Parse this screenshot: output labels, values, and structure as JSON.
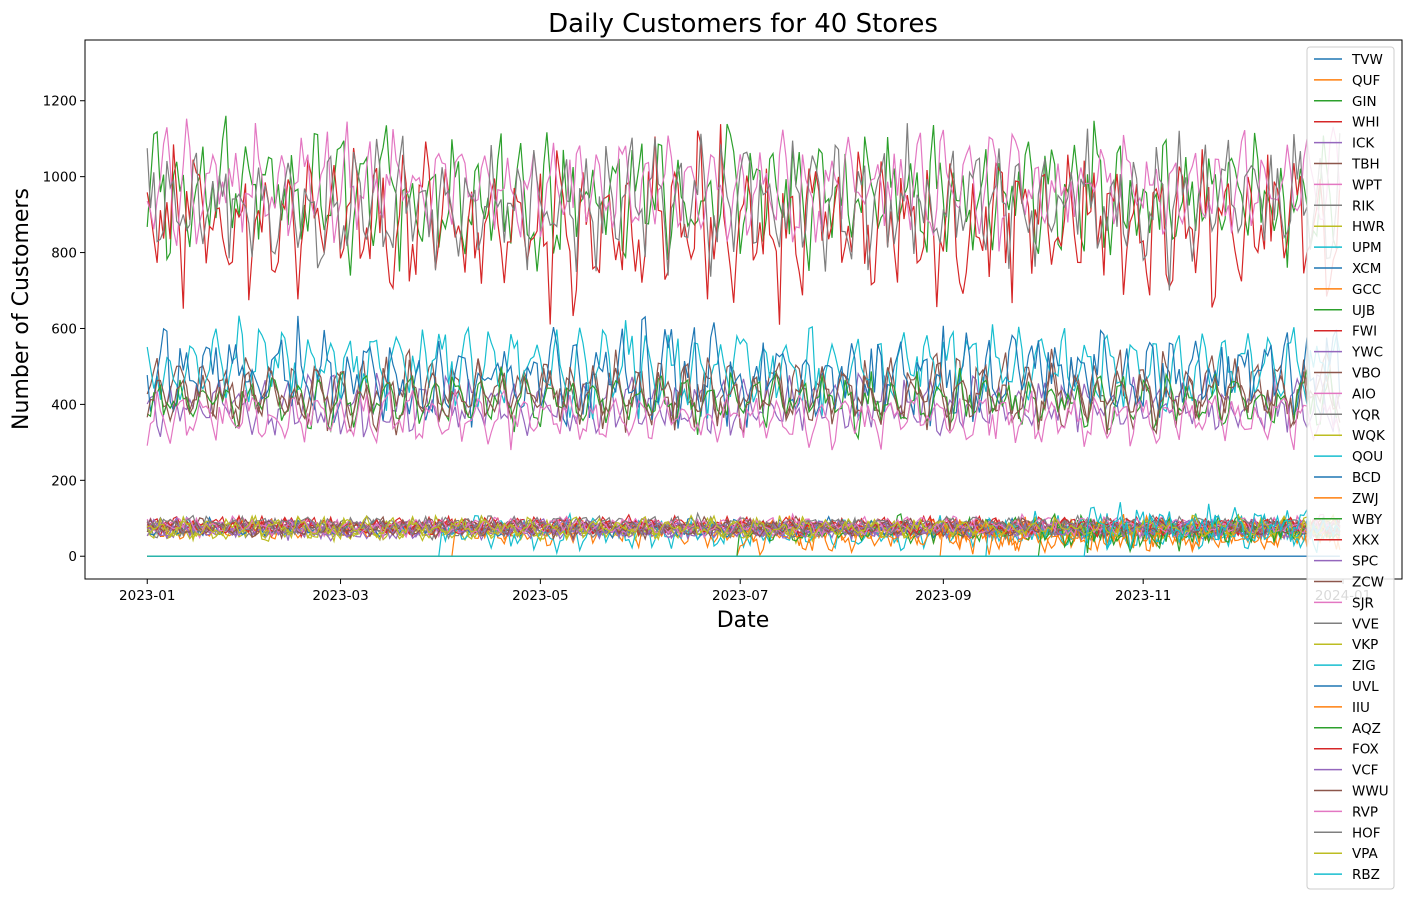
{
  "chart_data": {
    "type": "line",
    "title": "Daily Customers for 40 Stores",
    "xlabel": "Date",
    "ylabel": "Number of Customers",
    "x_range": [
      "2023-01-01",
      "2023-12-31"
    ],
    "xlim": [
      "2022-12-13",
      "2024-01-19"
    ],
    "ylim": [
      -60,
      1360
    ],
    "x_ticks": [
      "2023-01",
      "2023-03",
      "2023-05",
      "2023-07",
      "2023-09",
      "2023-11",
      "2024-01"
    ],
    "y_ticks": [
      0,
      200,
      400,
      600,
      800,
      1000,
      1200
    ],
    "grid": false,
    "legend_position": "right",
    "series": [
      {
        "name": "TVW",
        "color": "#1f77b4",
        "mean": 0,
        "amp": 0,
        "noise": 0,
        "start": "2023-01-01"
      },
      {
        "name": "QUF",
        "color": "#ff7f0e",
        "mean": 62,
        "amp": 15,
        "noise": 22,
        "start": "2023-04-05"
      },
      {
        "name": "GIN",
        "color": "#2ca02c",
        "mean": 950,
        "amp": 90,
        "noise": 90,
        "start": "2023-01-01"
      },
      {
        "name": "WHI",
        "color": "#d62728",
        "mean": 875,
        "amp": 110,
        "noise": 110,
        "start": "2023-01-01"
      },
      {
        "name": "ICK",
        "color": "#9467bd",
        "mean": 395,
        "amp": 45,
        "noise": 35,
        "start": "2023-01-01"
      },
      {
        "name": "TBH",
        "color": "#8c564b",
        "mean": 440,
        "amp": 55,
        "noise": 40,
        "start": "2023-01-01"
      },
      {
        "name": "WPT",
        "color": "#e377c2",
        "mean": 975,
        "amp": 80,
        "noise": 70,
        "start": "2023-01-01"
      },
      {
        "name": "RIK",
        "color": "#7f7f7f",
        "mean": 930,
        "amp": 95,
        "noise": 90,
        "start": "2023-01-01"
      },
      {
        "name": "HWR",
        "color": "#bcbd22",
        "mean": 70,
        "amp": 15,
        "noise": 12,
        "start": "2023-01-01"
      },
      {
        "name": "UPM",
        "color": "#17becf",
        "mean": 500,
        "amp": 70,
        "noise": 55,
        "start": "2023-01-01"
      },
      {
        "name": "XCM",
        "color": "#1f77b4",
        "mean": 480,
        "amp": 60,
        "noise": 70,
        "start": "2023-01-01"
      },
      {
        "name": "GCC",
        "color": "#ff7f0e",
        "mean": 70,
        "amp": 12,
        "noise": 12,
        "start": "2023-01-01"
      },
      {
        "name": "UJB",
        "color": "#2ca02c",
        "mean": 410,
        "amp": 45,
        "noise": 35,
        "start": "2023-01-01"
      },
      {
        "name": "FWI",
        "color": "#d62728",
        "mean": 78,
        "amp": 12,
        "noise": 12,
        "start": "2023-01-01"
      },
      {
        "name": "YWC",
        "color": "#9467bd",
        "mean": 68,
        "amp": 12,
        "noise": 12,
        "start": "2023-01-01"
      },
      {
        "name": "VBO",
        "color": "#8c564b",
        "mean": 420,
        "amp": 50,
        "noise": 40,
        "start": "2023-01-01"
      },
      {
        "name": "AIO",
        "color": "#e377c2",
        "mean": 365,
        "amp": 40,
        "noise": 35,
        "start": "2023-01-01"
      },
      {
        "name": "YQR",
        "color": "#7f7f7f",
        "mean": 72,
        "amp": 12,
        "noise": 12,
        "start": "2023-01-01"
      },
      {
        "name": "WQK",
        "color": "#bcbd22",
        "mean": 66,
        "amp": 12,
        "noise": 14,
        "start": "2023-01-01"
      },
      {
        "name": "QOU",
        "color": "#17becf",
        "mean": 60,
        "amp": 18,
        "noise": 25,
        "start": "2023-04-01"
      },
      {
        "name": "BCD",
        "color": "#1f77b4",
        "mean": 74,
        "amp": 12,
        "noise": 12,
        "start": "2023-01-01"
      },
      {
        "name": "ZWJ",
        "color": "#ff7f0e",
        "mean": 55,
        "amp": 18,
        "noise": 28,
        "start": "2023-07-01"
      },
      {
        "name": "WBY",
        "color": "#2ca02c",
        "mean": 68,
        "amp": 15,
        "noise": 22,
        "start": "2023-07-01"
      },
      {
        "name": "XKX",
        "color": "#d62728",
        "mean": 80,
        "amp": 12,
        "noise": 12,
        "start": "2023-01-01"
      },
      {
        "name": "SPC",
        "color": "#9467bd",
        "mean": 70,
        "amp": 12,
        "noise": 12,
        "start": "2023-01-01"
      },
      {
        "name": "ZCW",
        "color": "#8c564b",
        "mean": 76,
        "amp": 12,
        "noise": 12,
        "start": "2023-01-01"
      },
      {
        "name": "SJR",
        "color": "#e377c2",
        "mean": 82,
        "amp": 12,
        "noise": 12,
        "start": "2023-01-01"
      },
      {
        "name": "VVE",
        "color": "#7f7f7f",
        "mean": 78,
        "amp": 14,
        "noise": 12,
        "start": "2023-01-01"
      },
      {
        "name": "VKP",
        "color": "#bcbd22",
        "mean": 74,
        "amp": 14,
        "noise": 14,
        "start": "2023-01-01"
      },
      {
        "name": "ZIG",
        "color": "#17becf",
        "mean": 70,
        "amp": 18,
        "noise": 25,
        "start": "2023-09-15"
      },
      {
        "name": "UVL",
        "color": "#1f77b4",
        "mean": 0,
        "amp": 0,
        "noise": 0,
        "start": "2023-01-01"
      },
      {
        "name": "IIU",
        "color": "#ff7f0e",
        "mean": 60,
        "amp": 18,
        "noise": 28,
        "start": "2023-09-01"
      },
      {
        "name": "AQZ",
        "color": "#2ca02c",
        "mean": 65,
        "amp": 18,
        "noise": 28,
        "start": "2023-10-01"
      },
      {
        "name": "FOX",
        "color": "#d62728",
        "mean": 80,
        "amp": 12,
        "noise": 12,
        "start": "2023-01-01"
      },
      {
        "name": "VCF",
        "color": "#9467bd",
        "mean": 72,
        "amp": 12,
        "noise": 12,
        "start": "2023-01-01"
      },
      {
        "name": "WWU",
        "color": "#8c564b",
        "mean": 75,
        "amp": 12,
        "noise": 12,
        "start": "2023-01-01"
      },
      {
        "name": "RVP",
        "color": "#e377c2",
        "mean": 78,
        "amp": 12,
        "noise": 12,
        "start": "2023-01-01"
      },
      {
        "name": "HOF",
        "color": "#7f7f7f",
        "mean": 82,
        "amp": 14,
        "noise": 12,
        "start": "2023-01-01"
      },
      {
        "name": "VPA",
        "color": "#bcbd22",
        "mean": 76,
        "amp": 14,
        "noise": 14,
        "start": "2023-01-01"
      },
      {
        "name": "RBZ",
        "color": "#17becf",
        "mean": 80,
        "amp": 22,
        "noise": 32,
        "start": "2023-10-15"
      }
    ]
  }
}
